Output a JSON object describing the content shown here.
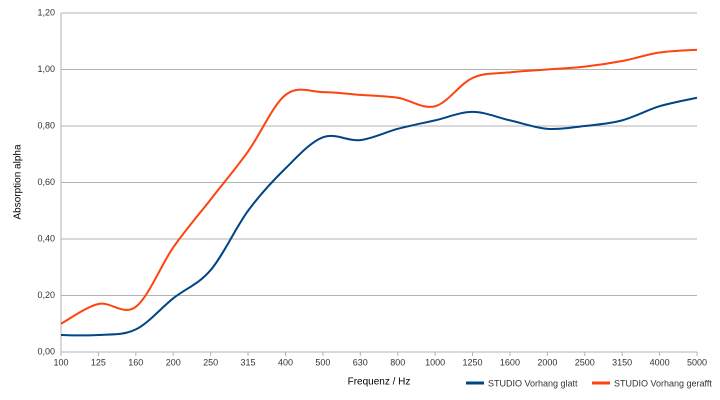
{
  "chart_data": {
    "type": "line",
    "x_label": "Frequenz / Hz",
    "y_label": "Absorption alpha",
    "categories": [
      "100",
      "125",
      "160",
      "200",
      "250",
      "315",
      "400",
      "500",
      "630",
      "800",
      "1000",
      "1250",
      "1600",
      "2000",
      "2500",
      "3150",
      "4000",
      "5000"
    ],
    "series": [
      {
        "name": "STUDIO Vorhang glatt",
        "color": "#004586",
        "values": [
          0.06,
          0.06,
          0.08,
          0.19,
          0.29,
          0.5,
          0.65,
          0.76,
          0.75,
          0.79,
          0.82,
          0.85,
          0.82,
          0.79,
          0.8,
          0.82,
          0.87,
          0.9
        ]
      },
      {
        "name": "STUDIO Vorhang gerafft",
        "color": "#ff420e",
        "values": [
          0.1,
          0.17,
          0.16,
          0.37,
          0.54,
          0.71,
          0.91,
          0.92,
          0.91,
          0.9,
          0.87,
          0.97,
          0.99,
          1.0,
          1.01,
          1.03,
          1.06,
          1.07
        ]
      }
    ],
    "ylim": [
      0,
      1.2
    ],
    "yticks": [
      {
        "value": 0,
        "label": "0,00"
      },
      {
        "value": 0.2,
        "label": "0,20"
      },
      {
        "value": 0.4,
        "label": "0,40"
      },
      {
        "value": 0.6,
        "label": "0,60"
      },
      {
        "value": 0.8,
        "label": "0,80"
      },
      {
        "value": 1.0,
        "label": "1,00"
      },
      {
        "value": 1.2,
        "label": "1,20"
      }
    ],
    "grid": true,
    "legend": "bottom-right"
  }
}
